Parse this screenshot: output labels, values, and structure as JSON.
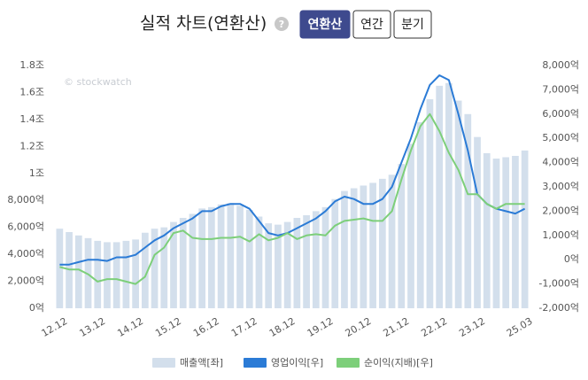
{
  "chart_data": {
    "type": "bar",
    "title": "실적 차트(연환산)",
    "controls": [
      "연환산",
      "연간",
      "분기"
    ],
    "active_control": 0,
    "watermark": "© stockwatch",
    "categories": [
      "12.12",
      null,
      null,
      null,
      "13.12",
      null,
      null,
      null,
      "14.12",
      null,
      null,
      null,
      "15.12",
      null,
      null,
      null,
      "16.12",
      null,
      null,
      null,
      "17.12",
      null,
      null,
      null,
      "18.12",
      null,
      null,
      null,
      "19.12",
      null,
      null,
      null,
      "20.12",
      null,
      null,
      null,
      "21.12",
      null,
      null,
      null,
      "22.12",
      null,
      null,
      null,
      "23.12",
      null,
      null,
      null,
      null,
      "25.03"
    ],
    "series": [
      {
        "name": "매출액[좌]",
        "type": "bar",
        "color": "#d3dfec",
        "values": [
          5900,
          5650,
          5400,
          5200,
          5000,
          4900,
          4900,
          5000,
          5100,
          5600,
          5900,
          6000,
          6400,
          6700,
          7000,
          7400,
          7500,
          7700,
          7800,
          7600,
          7300,
          6800,
          6300,
          6200,
          6400,
          6700,
          6900,
          7200,
          7500,
          8100,
          8700,
          8900,
          9100,
          9300,
          9600,
          9900,
          10700,
          12200,
          13800,
          15500,
          16500,
          16700,
          15400,
          14400,
          12700,
          11500,
          11100,
          11200,
          11300,
          11700
        ]
      },
      {
        "name": "영업이익[우]",
        "type": "line",
        "axis": "y2",
        "color": "#2b7bd6",
        "values": [
          -200,
          -200,
          -100,
          0,
          0,
          -50,
          100,
          100,
          200,
          500,
          800,
          1000,
          1300,
          1500,
          1700,
          2000,
          2000,
          2200,
          2300,
          2300,
          2100,
          1600,
          1100,
          1000,
          1100,
          1300,
          1500,
          1700,
          2000,
          2400,
          2600,
          2500,
          2300,
          2300,
          2500,
          3000,
          4000,
          5000,
          6200,
          7200,
          7600,
          7400,
          6000,
          4500,
          2700,
          2300,
          2100,
          2000,
          1900,
          2100
        ]
      },
      {
        "name": "순이익(지배)[우]",
        "type": "line",
        "axis": "y2",
        "color": "#7dcf7a",
        "values": [
          -300,
          -400,
          -400,
          -600,
          -900,
          -800,
          -800,
          -900,
          -1000,
          -700,
          200,
          500,
          1100,
          1200,
          900,
          850,
          850,
          900,
          900,
          950,
          750,
          1050,
          800,
          900,
          1100,
          850,
          1000,
          1050,
          1000,
          1400,
          1600,
          1650,
          1700,
          1600,
          1600,
          2000,
          3300,
          4500,
          5500,
          6000,
          5300,
          4400,
          3700,
          2700,
          2700,
          2300,
          2100,
          2300,
          2300,
          2300
        ]
      }
    ],
    "ylim": [
      0,
      18000
    ],
    "yticks": [
      {
        "value": 0,
        "label": "0억"
      },
      {
        "value": 2000,
        "label": "2,000억"
      },
      {
        "value": 4000,
        "label": "4,000억"
      },
      {
        "value": 6000,
        "label": "6,000억"
      },
      {
        "value": 8000,
        "label": "8,000억"
      },
      {
        "value": 10000,
        "label": "1조"
      },
      {
        "value": 12000,
        "label": "1.2조"
      },
      {
        "value": 14000,
        "label": "1.4조"
      },
      {
        "value": 16000,
        "label": "1.6조"
      },
      {
        "value": 18000,
        "label": "1.8조"
      }
    ],
    "y2lim": [
      -2000,
      8000
    ],
    "y2ticks": [
      {
        "value": -2000,
        "label": "-2,000억"
      },
      {
        "value": -1000,
        "label": "-1,000억"
      },
      {
        "value": 0,
        "label": "0억"
      },
      {
        "value": 1000,
        "label": "1,000억"
      },
      {
        "value": 2000,
        "label": "2,000억"
      },
      {
        "value": 3000,
        "label": "3,000억"
      },
      {
        "value": 4000,
        "label": "4,000억"
      },
      {
        "value": 5000,
        "label": "5,000억"
      },
      {
        "value": 6000,
        "label": "6,000억"
      },
      {
        "value": 7000,
        "label": "7,000억"
      },
      {
        "value": 8000,
        "label": "8,000억"
      }
    ]
  }
}
